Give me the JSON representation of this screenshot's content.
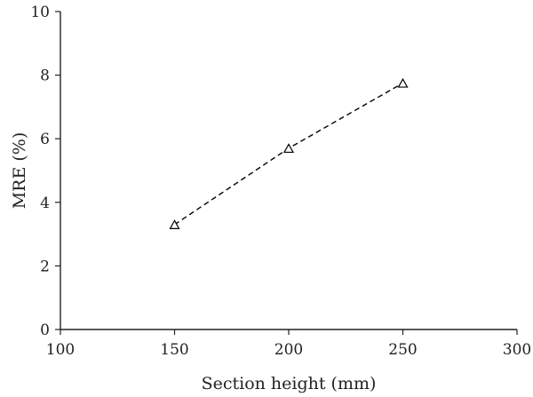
{
  "chart_data": {
    "type": "scatter",
    "title": "",
    "xlabel": "Section height (mm)",
    "ylabel": "MRE (%)",
    "xlim": [
      100,
      300
    ],
    "ylim": [
      0,
      10
    ],
    "xticks": [
      100,
      150,
      200,
      250,
      300
    ],
    "yticks": [
      0,
      2,
      4,
      6,
      8,
      10
    ],
    "xtick_labels": [
      "100",
      "150",
      "200",
      "250",
      "300"
    ],
    "ytick_labels": [
      "0",
      "2",
      "4",
      "6",
      "8",
      "10"
    ],
    "grid": false,
    "legend": "none",
    "series": [
      {
        "x": [
          150,
          200,
          250
        ],
        "y": [
          3.3,
          5.7,
          7.75
        ],
        "marker": "open-triangle",
        "line_style": "dashed",
        "color": "#000000"
      }
    ]
  }
}
